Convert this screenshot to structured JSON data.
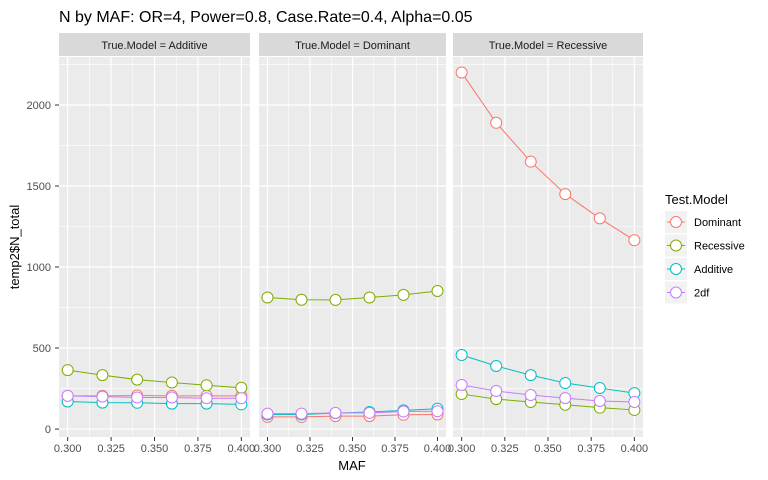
{
  "chart_data": {
    "type": "line",
    "title": "N by MAF: OR=4, Power=0.8, Case.Rate=0.4, Alpha=0.05",
    "xlabel": "MAF",
    "ylabel": "temp2$N_total",
    "x": [
      0.3,
      0.32,
      0.34,
      0.36,
      0.38,
      0.4
    ],
    "xlim": [
      0.295,
      0.405
    ],
    "ylim": [
      -49,
      2296
    ],
    "xticks": [
      "0.300",
      "0.325",
      "0.350",
      "0.375",
      "0.400"
    ],
    "xtick_values": [
      0.3,
      0.325,
      0.35,
      0.375,
      0.4
    ],
    "yticks": [
      "0",
      "500",
      "1000",
      "1500",
      "2000"
    ],
    "ytick_values": [
      0,
      500,
      1000,
      1500,
      2000
    ],
    "grid": true,
    "legend": {
      "title": "Test.Model",
      "placement": "right",
      "entries": [
        "Dominant",
        "Recessive",
        "Additive",
        "2df"
      ],
      "colors": [
        "#F8766D",
        "#7CAE00",
        "#00BFC4",
        "#C77CFF"
      ]
    },
    "facets": [
      {
        "label": "True.Model = Additive",
        "series": [
          {
            "name": "Dominant",
            "values": [
              205,
              205,
              207,
              205,
              205,
              205
            ]
          },
          {
            "name": "Recessive",
            "values": [
              364,
              333,
              305,
              287,
              270,
              255
            ]
          },
          {
            "name": "Additive",
            "values": [
              170,
              163,
              162,
              157,
              157,
              152
            ]
          },
          {
            "name": "2df",
            "values": [
              205,
              200,
              195,
              195,
              190,
              190
            ]
          }
        ]
      },
      {
        "label": "True.Model = Dominant",
        "series": [
          {
            "name": "Dominant",
            "values": [
              75,
              75,
              80,
              80,
              88,
              90
            ]
          },
          {
            "name": "Recessive",
            "values": [
              812,
              798,
              797,
              812,
              828,
              852
            ]
          },
          {
            "name": "Additive",
            "values": [
              90,
              90,
              98,
              105,
              115,
              125
            ]
          },
          {
            "name": "2df",
            "values": [
              95,
              95,
              100,
              100,
              108,
              110
            ]
          }
        ]
      },
      {
        "label": "True.Model = Recessive",
        "series": [
          {
            "name": "Dominant",
            "values": [
              2200,
              1890,
              1650,
              1450,
              1300,
              1165
            ]
          },
          {
            "name": "Recessive",
            "values": [
              216,
              185,
              167,
              150,
              132,
              118
            ]
          },
          {
            "name": "Additive",
            "values": [
              457,
              389,
              333,
              284,
              253,
              222
            ]
          },
          {
            "name": "2df",
            "values": [
              272,
              235,
              210,
              191,
              173,
              167
            ]
          }
        ]
      }
    ]
  }
}
